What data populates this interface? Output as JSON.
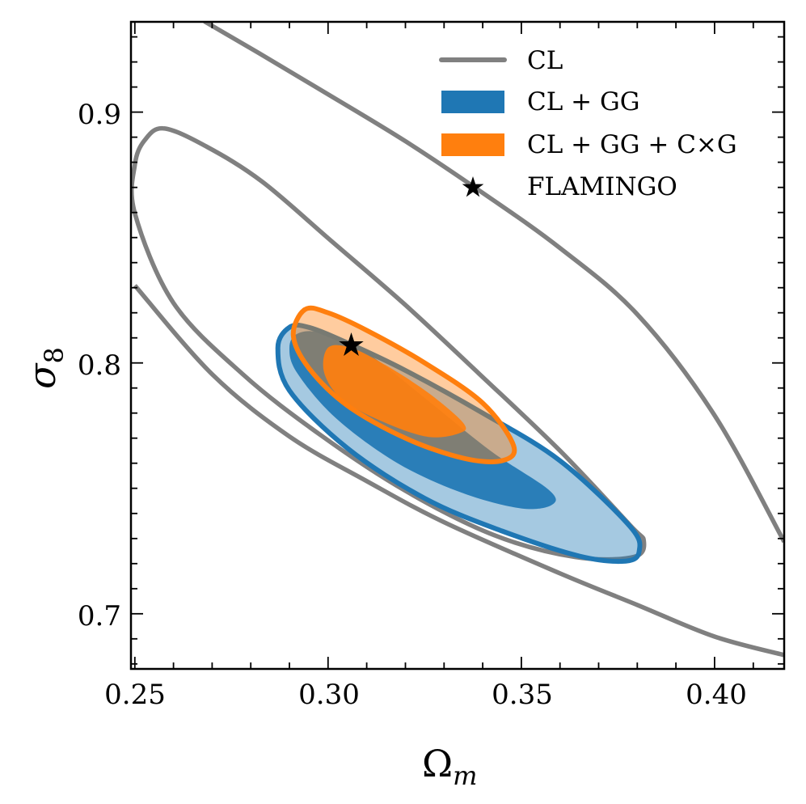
{
  "chart_data": {
    "type": "contour",
    "title": "",
    "xlabel": "Ω",
    "xlabel_sub": "m",
    "ylabel": "σ",
    "ylabel_sub": "8",
    "xlim": [
      0.249,
      0.418
    ],
    "ylim": [
      0.678,
      0.936
    ],
    "x_ticks": [
      {
        "value": 0.25,
        "label": "0.25"
      },
      {
        "value": 0.3,
        "label": "0.30"
      },
      {
        "value": 0.35,
        "label": "0.35"
      },
      {
        "value": 0.4,
        "label": "0.40"
      }
    ],
    "y_ticks": [
      {
        "value": 0.7,
        "label": "0.7"
      },
      {
        "value": 0.8,
        "label": "0.8"
      },
      {
        "value": 0.9,
        "label": "0.9"
      }
    ],
    "legend_position": "top-right",
    "legend": [
      {
        "label": "CL",
        "style": "line",
        "color": "#808080"
      },
      {
        "label": "CL + GG",
        "style": "patch",
        "color": "#1f77b4"
      },
      {
        "label": "CL + GG + C×G",
        "style": "patch",
        "color": "#ff7f0e"
      },
      {
        "label": "FLAMINGO",
        "style": "star",
        "color": "#000000"
      }
    ],
    "series": [
      {
        "name": "CL",
        "color": "#808080",
        "contours": [
          {
            "level": "68%",
            "filled": false,
            "points": [
              [
                0.2575,
                0.8935
              ],
              [
                0.2685,
                0.8863
              ],
              [
                0.283,
                0.8722
              ],
              [
                0.301,
                0.8484
              ],
              [
                0.32,
                0.8231
              ],
              [
                0.339,
                0.7958
              ],
              [
                0.36,
                0.765
              ],
              [
                0.378,
                0.7355
              ],
              [
                0.3817,
                0.729
              ],
              [
                0.379,
                0.7226
              ],
              [
                0.364,
                0.7226
              ],
              [
                0.343,
                0.7313
              ],
              [
                0.32,
                0.749
              ],
              [
                0.298,
                0.7713
              ],
              [
                0.278,
                0.7954
              ],
              [
                0.26,
                0.8239
              ],
              [
                0.25,
                0.8597
              ],
              [
                0.25,
                0.879
              ],
              [
                0.2525,
                0.8887
              ],
              [
                0.2575,
                0.8935
              ]
            ]
          },
          {
            "level": "95%",
            "filled": false,
            "points": [
              [
                0.268,
                0.9362
              ],
              [
                0.282,
                0.9236
              ],
              [
                0.3,
                0.9071
              ],
              [
                0.32,
                0.8884
              ],
              [
                0.34,
                0.8678
              ],
              [
                0.36,
                0.8458
              ],
              [
                0.38,
                0.8194
              ],
              [
                0.4,
                0.7791
              ],
              [
                0.418,
                0.7287
              ]
            ]
          },
          {
            "level": "95%-lower",
            "filled": false,
            "points": [
              [
                0.25,
                0.8309
              ],
              [
                0.27,
                0.7955
              ],
              [
                0.29,
                0.7707
              ],
              [
                0.31,
                0.7529
              ],
              [
                0.33,
                0.7365
              ],
              [
                0.36,
                0.7161
              ],
              [
                0.38,
                0.7035
              ],
              [
                0.4,
                0.6909
              ],
              [
                0.418,
                0.6835
              ]
            ]
          }
        ]
      },
      {
        "name": "CL + GG",
        "color": "#1f77b4",
        "contours": [
          {
            "level": "95%",
            "filled": true,
            "points": [
              [
                0.29,
                0.8142
              ],
              [
                0.295,
                0.8142
              ],
              [
                0.305,
                0.808
              ],
              [
                0.32,
                0.797
              ],
              [
                0.34,
                0.78
              ],
              [
                0.36,
                0.761
              ],
              [
                0.378,
                0.735
              ],
              [
                0.3805,
                0.725
              ],
              [
                0.377,
                0.721
              ],
              [
                0.365,
                0.723
              ],
              [
                0.345,
                0.733
              ],
              [
                0.325,
                0.746
              ],
              [
                0.305,
                0.766
              ],
              [
                0.29,
                0.789
              ],
              [
                0.287,
                0.806
              ],
              [
                0.29,
                0.8142
              ]
            ]
          },
          {
            "level": "68%",
            "filled": true,
            "points": [
              [
                0.292,
                0.8116
              ],
              [
                0.298,
                0.812
              ],
              [
                0.31,
                0.804
              ],
              [
                0.325,
                0.786
              ],
              [
                0.342,
                0.765
              ],
              [
                0.357,
                0.7495
              ],
              [
                0.358,
                0.7435
              ],
              [
                0.35,
                0.742
              ],
              [
                0.335,
                0.748
              ],
              [
                0.318,
                0.76
              ],
              [
                0.302,
                0.778
              ],
              [
                0.292,
                0.796
              ],
              [
                0.29,
                0.806
              ],
              [
                0.292,
                0.8116
              ]
            ]
          }
        ]
      },
      {
        "name": "CL + GG + C×G",
        "color": "#ff7f0e",
        "contours": [
          {
            "level": "95%",
            "filled": true,
            "points": [
              [
                0.294,
                0.8213
              ],
              [
                0.3,
                0.82
              ],
              [
                0.31,
                0.813
              ],
              [
                0.325,
                0.8
              ],
              [
                0.34,
                0.784
              ],
              [
                0.348,
                0.767
              ],
              [
                0.345,
                0.761
              ],
              [
                0.335,
                0.762
              ],
              [
                0.32,
                0.77
              ],
              [
                0.305,
                0.783
              ],
              [
                0.295,
                0.798
              ],
              [
                0.291,
                0.811
              ],
              [
                0.294,
                0.8213
              ]
            ]
          },
          {
            "level": "68%",
            "filled": true,
            "points": [
              [
                0.3,
                0.8061
              ],
              [
                0.306,
                0.806
              ],
              [
                0.315,
                0.799
              ],
              [
                0.326,
                0.788
              ],
              [
                0.335,
                0.776
              ],
              [
                0.334,
                0.772
              ],
              [
                0.326,
                0.7705
              ],
              [
                0.315,
                0.776
              ],
              [
                0.304,
                0.785
              ],
              [
                0.299,
                0.796
              ],
              [
                0.3,
                0.8061
              ]
            ]
          }
        ]
      }
    ],
    "markers": [
      {
        "name": "FLAMINGO",
        "x": 0.306,
        "y": 0.807,
        "symbol": "star",
        "color": "#000000"
      }
    ]
  }
}
